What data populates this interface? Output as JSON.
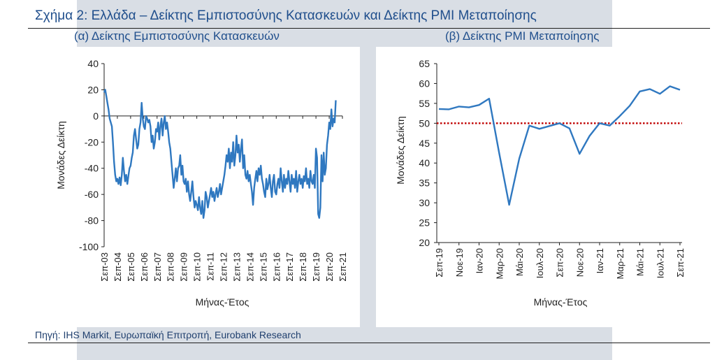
{
  "figure_title": "Σχήμα 2: Ελλάδα – Δείκτης Εμπιστοσύνης Κατασκευών και Δείκτης PMI Μεταποίησης",
  "source": "Πηγή: IHS Markit, Ευρωπαϊκή Επιτροπή, Eurobank Research",
  "colors": {
    "line": "#2f78c0",
    "reference": "#c00000",
    "title": "#1f4e8c",
    "axis": "#1f1f1f"
  },
  "chart_data": [
    {
      "type": "line",
      "title": "(α) Δείκτης Εμπιστοσύνης Κατασκευών",
      "xlabel": "Μήνας-Έτος",
      "ylabel": "Μονάδες Δείκτη",
      "ylim": [
        -100,
        40
      ],
      "yticks": [
        40,
        20,
        0,
        -20,
        -40,
        -60,
        -80,
        -100
      ],
      "xlim": [
        0,
        216
      ],
      "xtick_labels": [
        "Σεπ-03",
        "Σεπ-04",
        "Σεπ-05",
        "Σεπ-06",
        "Σεπ-07",
        "Σεπ-08",
        "Σεπ-09",
        "Σεπ-10",
        "Σεπ-11",
        "Σεπ-12",
        "Σεπ-13",
        "Σεπ-14",
        "Σεπ-15",
        "Σεπ-16",
        "Σεπ-17",
        "Σεπ-18",
        "Σεπ-19",
        "Σεπ-20",
        "Σεπ-21"
      ],
      "xtick_positions": [
        0,
        12,
        24,
        36,
        48,
        60,
        72,
        84,
        96,
        108,
        120,
        132,
        144,
        156,
        168,
        180,
        192,
        204,
        216
      ],
      "series": [
        {
          "name": "Δείκτης Εμπιστοσύνης Κατασκευών",
          "points": [
            [
              0,
              18
            ],
            [
              1,
              20
            ],
            [
              2,
              15
            ],
            [
              3,
              10
            ],
            [
              4,
              5
            ],
            [
              5,
              -2
            ],
            [
              6,
              -5
            ],
            [
              7,
              -8
            ],
            [
              8,
              -20
            ],
            [
              9,
              -35
            ],
            [
              10,
              -45
            ],
            [
              11,
              -50
            ],
            [
              12,
              -48
            ],
            [
              13,
              -52
            ],
            [
              14,
              -47
            ],
            [
              15,
              -53
            ],
            [
              16,
              -45
            ],
            [
              17,
              -32
            ],
            [
              18,
              -42
            ],
            [
              19,
              -50
            ],
            [
              20,
              -45
            ],
            [
              21,
              -52
            ],
            [
              22,
              -46
            ],
            [
              23,
              -40
            ],
            [
              24,
              -38
            ],
            [
              25,
              -32
            ],
            [
              26,
              -28
            ],
            [
              27,
              -15
            ],
            [
              28,
              -10
            ],
            [
              29,
              -18
            ],
            [
              30,
              -25
            ],
            [
              31,
              -22
            ],
            [
              32,
              -10
            ],
            [
              33,
              -5
            ],
            [
              34,
              10
            ],
            [
              35,
              -2
            ],
            [
              36,
              -8
            ],
            [
              37,
              -10
            ],
            [
              38,
              0
            ],
            [
              39,
              -2
            ],
            [
              40,
              -5
            ],
            [
              41,
              -3
            ],
            [
              42,
              -8
            ],
            [
              43,
              -20
            ],
            [
              44,
              -15
            ],
            [
              45,
              -25
            ],
            [
              46,
              -20
            ],
            [
              47,
              -10
            ],
            [
              48,
              -12
            ],
            [
              49,
              -5
            ],
            [
              50,
              -18
            ],
            [
              51,
              -8
            ],
            [
              52,
              -2
            ],
            [
              53,
              -15
            ],
            [
              54,
              -5
            ],
            [
              55,
              0
            ],
            [
              56,
              -10
            ],
            [
              57,
              -5
            ],
            [
              58,
              -12
            ],
            [
              59,
              -20
            ],
            [
              60,
              -25
            ],
            [
              61,
              -35
            ],
            [
              62,
              -45
            ],
            [
              63,
              -55
            ],
            [
              64,
              -48
            ],
            [
              65,
              -40
            ],
            [
              66,
              -50
            ],
            [
              67,
              -40
            ],
            [
              68,
              -38
            ],
            [
              69,
              -30
            ],
            [
              70,
              -45
            ],
            [
              71,
              -38
            ],
            [
              72,
              -50
            ],
            [
              73,
              -52
            ],
            [
              74,
              -48
            ],
            [
              75,
              -58
            ],
            [
              76,
              -50
            ],
            [
              77,
              -60
            ],
            [
              78,
              -65
            ],
            [
              79,
              -58
            ],
            [
              80,
              -50
            ],
            [
              81,
              -62
            ],
            [
              82,
              -70
            ],
            [
              83,
              -65
            ],
            [
              84,
              -68
            ],
            [
              85,
              -72
            ],
            [
              86,
              -62
            ],
            [
              87,
              -70
            ],
            [
              88,
              -75
            ],
            [
              89,
              -65
            ],
            [
              90,
              -78
            ],
            [
              91,
              -72
            ],
            [
              92,
              -58
            ],
            [
              93,
              -62
            ],
            [
              94,
              -70
            ],
            [
              95,
              -65
            ],
            [
              96,
              -60
            ],
            [
              97,
              -55
            ],
            [
              98,
              -62
            ],
            [
              99,
              -58
            ],
            [
              100,
              -65
            ],
            [
              101,
              -60
            ],
            [
              102,
              -55
            ],
            [
              103,
              -62
            ],
            [
              104,
              -58
            ],
            [
              105,
              -52
            ],
            [
              106,
              -60
            ],
            [
              107,
              -55
            ],
            [
              108,
              -50
            ],
            [
              109,
              -45
            ],
            [
              110,
              -38
            ],
            [
              111,
              -30
            ],
            [
              112,
              -35
            ],
            [
              113,
              -25
            ],
            [
              114,
              -40
            ],
            [
              115,
              -28
            ],
            [
              116,
              -35
            ],
            [
              117,
              -20
            ],
            [
              118,
              -38
            ],
            [
              119,
              -30
            ],
            [
              120,
              -15
            ],
            [
              121,
              -28
            ],
            [
              122,
              -22
            ],
            [
              123,
              -35
            ],
            [
              124,
              -25
            ],
            [
              125,
              -18
            ],
            [
              126,
              -40
            ],
            [
              127,
              -30
            ],
            [
              128,
              -45
            ],
            [
              129,
              -48
            ],
            [
              130,
              -42
            ],
            [
              131,
              -50
            ],
            [
              132,
              -45
            ],
            [
              133,
              -52
            ],
            [
              134,
              -58
            ],
            [
              135,
              -68
            ],
            [
              136,
              -55
            ],
            [
              137,
              -48
            ],
            [
              138,
              -42
            ],
            [
              139,
              -50
            ],
            [
              140,
              -40
            ],
            [
              141,
              -45
            ],
            [
              142,
              -38
            ],
            [
              143,
              -48
            ],
            [
              144,
              -52
            ],
            [
              145,
              -58
            ],
            [
              146,
              -62
            ],
            [
              147,
              -48
            ],
            [
              148,
              -56
            ],
            [
              149,
              -52
            ],
            [
              150,
              -45
            ],
            [
              151,
              -55
            ],
            [
              152,
              -62
            ],
            [
              153,
              -50
            ],
            [
              154,
              -45
            ],
            [
              155,
              -58
            ],
            [
              156,
              -60
            ],
            [
              157,
              -52
            ],
            [
              158,
              -48
            ],
            [
              159,
              -55
            ],
            [
              160,
              -40
            ],
            [
              161,
              -50
            ],
            [
              162,
              -58
            ],
            [
              163,
              -45
            ],
            [
              164,
              -55
            ],
            [
              165,
              -48
            ],
            [
              166,
              -52
            ],
            [
              167,
              -42
            ],
            [
              168,
              -50
            ],
            [
              169,
              -58
            ],
            [
              170,
              -45
            ],
            [
              171,
              -52
            ],
            [
              172,
              -48
            ],
            [
              173,
              -55
            ],
            [
              174,
              -42
            ],
            [
              175,
              -58
            ],
            [
              176,
              -50
            ],
            [
              177,
              -45
            ],
            [
              178,
              -52
            ],
            [
              179,
              -48
            ],
            [
              180,
              -55
            ],
            [
              181,
              -46
            ],
            [
              182,
              -50
            ],
            [
              183,
              -40
            ],
            [
              184,
              -52
            ],
            [
              185,
              -48
            ],
            [
              186,
              -55
            ],
            [
              187,
              -42
            ],
            [
              188,
              -50
            ],
            [
              189,
              -52
            ],
            [
              190,
              -45
            ],
            [
              191,
              -55
            ],
            [
              192,
              -25
            ],
            [
              193,
              -32
            ],
            [
              194,
              -75
            ],
            [
              195,
              -78
            ],
            [
              196,
              -70
            ],
            [
              197,
              -30
            ],
            [
              198,
              -50
            ],
            [
              199,
              -28
            ],
            [
              200,
              -45
            ],
            [
              201,
              -40
            ],
            [
              202,
              -22
            ],
            [
              203,
              -15
            ],
            [
              204,
              -5
            ],
            [
              205,
              -10
            ],
            [
              206,
              5
            ],
            [
              207,
              -8
            ],
            [
              208,
              -2
            ],
            [
              209,
              -5
            ],
            [
              210,
              12
            ]
          ]
        }
      ]
    },
    {
      "type": "line",
      "title": "(β) Δείκτης PMI Μεταποίησης",
      "xlabel": "Μήνας-Έτος",
      "ylabel": "Μονάδες Δείκτη",
      "ylim": [
        20,
        65
      ],
      "yticks": [
        65,
        60,
        55,
        50,
        45,
        40,
        35,
        30,
        25,
        20
      ],
      "xtick_labels": [
        "Σεπ-19",
        "Νοε-19",
        "Ιαν-20",
        "Μαρ-20",
        "Μάι-20",
        "Ιουλ-20",
        "Σεπ-20",
        "Νοε-20",
        "Ιαν-21",
        "Μαρ-21",
        "Μάι-21",
        "Ιουλ-21",
        "Σεπ-21"
      ],
      "xtick_positions": [
        0,
        2,
        4,
        6,
        8,
        10,
        12,
        14,
        16,
        18,
        20,
        22,
        24
      ],
      "reference_line": 50,
      "series": [
        {
          "name": "PMI Μεταποίησης",
          "x": [
            0,
            1,
            2,
            3,
            4,
            5,
            6,
            7,
            8,
            9,
            10,
            11,
            12,
            13,
            14,
            15,
            16,
            17,
            18,
            19,
            20,
            21,
            22,
            23,
            24
          ],
          "values": [
            53.6,
            53.5,
            54.2,
            54.0,
            54.6,
            56.2,
            42.5,
            29.5,
            41.1,
            49.4,
            48.6,
            49.3,
            50.0,
            48.7,
            42.3,
            46.8,
            50.0,
            49.4,
            51.8,
            54.4,
            58.0,
            58.6,
            57.4,
            59.3,
            58.4
          ]
        }
      ]
    }
  ]
}
